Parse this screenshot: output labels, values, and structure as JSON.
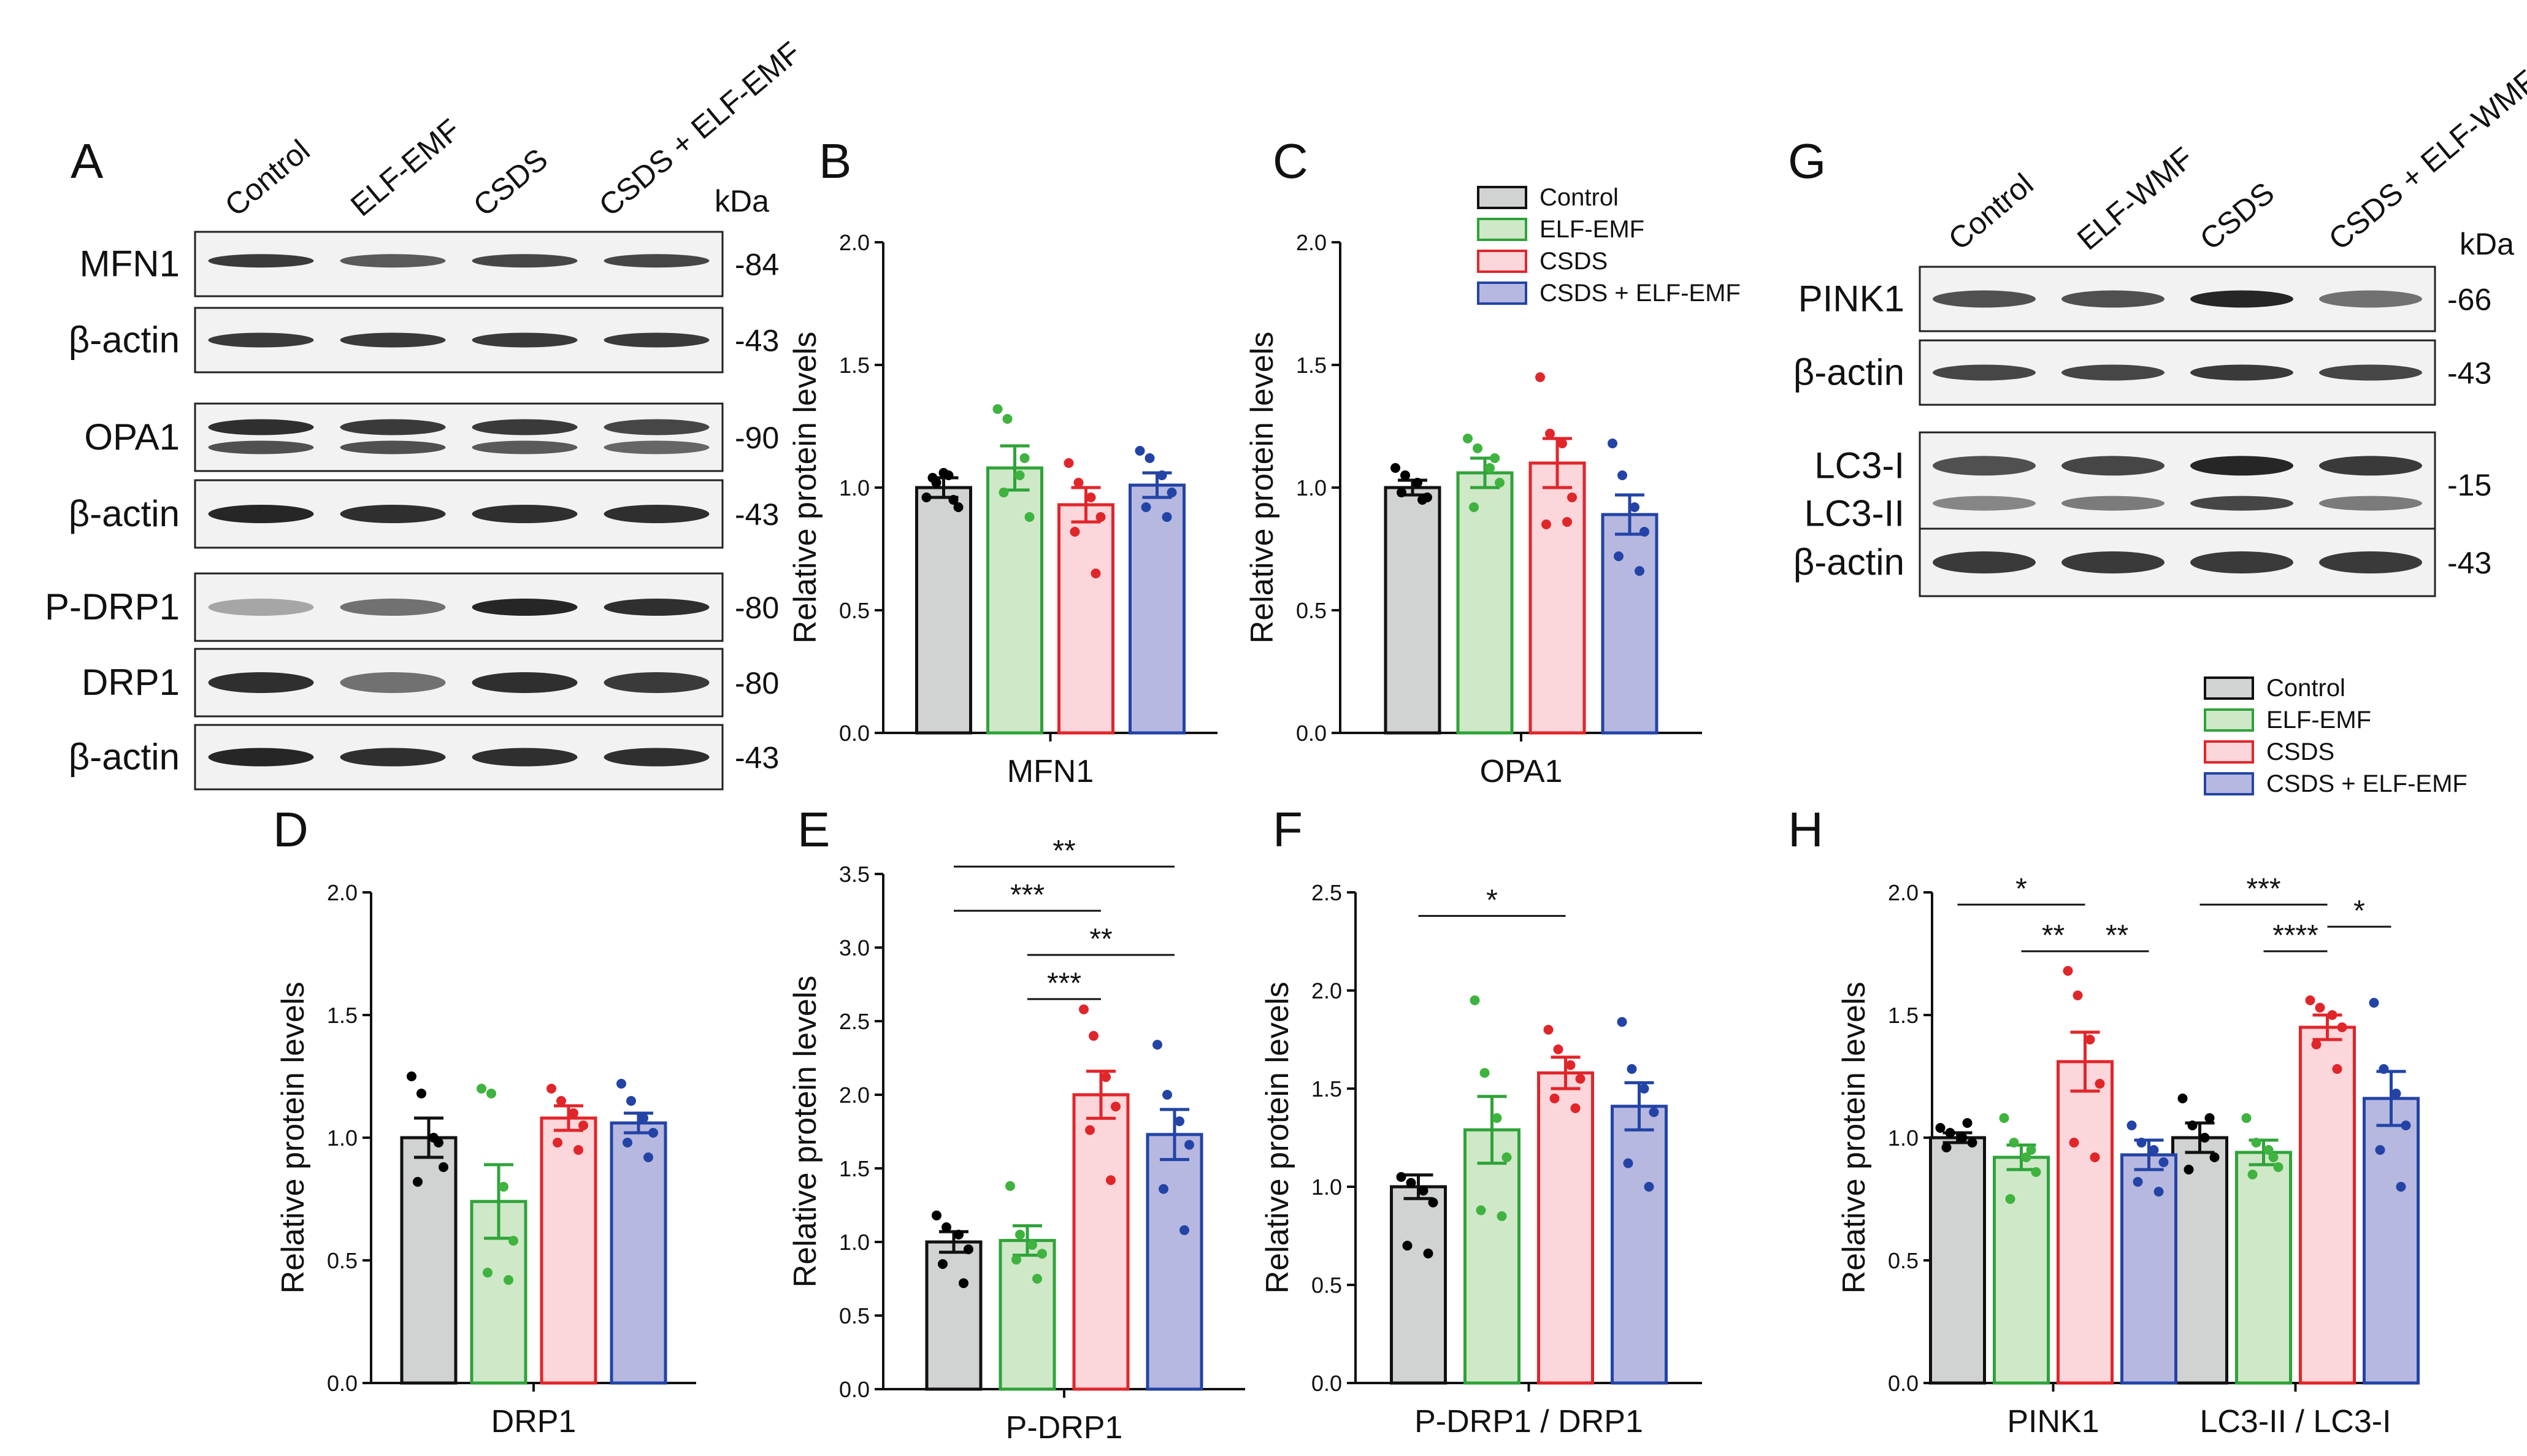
{
  "colors": {
    "control": {
      "fill": "#d0d3d2",
      "stroke": "#111111",
      "dot": "#000000"
    },
    "elf": {
      "fill": "#cfe8c8",
      "stroke": "#2fa33a",
      "dot": "#3fb33f"
    },
    "csds": {
      "fill": "#fbd6da",
      "stroke": "#e0262b",
      "dot": "#e0262b"
    },
    "csds_elf": {
      "fill": "#b7b8e0",
      "stroke": "#2344a6",
      "dot": "#2344a6"
    }
  },
  "legend_labels": [
    "Control",
    "ELF-EMF",
    "CSDS",
    "CSDS + ELF-EMF"
  ],
  "panel_letters": {
    "A": "A",
    "B": "B",
    "C": "C",
    "D": "D",
    "E": "E",
    "F": "F",
    "G": "G",
    "H": "H"
  },
  "blot_A": {
    "lanes": [
      "Control",
      "ELF-EMF",
      "CSDS",
      "CSDS + ELF-EMF"
    ],
    "unit": "kDa",
    "rows": [
      {
        "label": "MFN1",
        "kda": "-84"
      },
      {
        "label": "β-actin",
        "kda": "-43"
      },
      {
        "label": "OPA1",
        "kda": "-90"
      },
      {
        "label": "β-actin",
        "kda": "-43"
      },
      {
        "label": "P-DRP1",
        "kda": "-80"
      },
      {
        "label": "DRP1",
        "kda": "-80"
      },
      {
        "label": "β-actin",
        "kda": "-43"
      }
    ]
  },
  "blot_G": {
    "lanes": [
      "Control",
      "ELF-WMF",
      "CSDS",
      "CSDS + ELF-WMF"
    ],
    "unit": "kDa",
    "rows": [
      {
        "label": "PINK1",
        "kda": "-66"
      },
      {
        "label": "β-actin",
        "kda": "-43"
      },
      {
        "label": "LC3-I",
        "label2": "LC3-II",
        "kda": "-15"
      },
      {
        "label": "β-actin",
        "kda": "-43"
      }
    ]
  },
  "chart_data": [
    {
      "panel": "B",
      "type": "bar",
      "ylabel": "Relative protein levels",
      "xlabel": "",
      "categories": [
        "MFN1"
      ],
      "ylim": [
        0,
        2.0
      ],
      "yticks": [
        "0.0",
        "0.5",
        "1.0",
        "1.5",
        "2.0"
      ],
      "series": [
        {
          "name": "Control",
          "values": [
            1.0
          ],
          "sem": [
            0.04
          ],
          "points": [
            [
              0.96,
              1.02,
              1.05,
              0.92,
              1.04,
              0.95,
              1.06
            ]
          ]
        },
        {
          "name": "ELF-EMF",
          "values": [
            1.08
          ],
          "sem": [
            0.09
          ],
          "points": [
            [
              1.32,
              1.28,
              1.05,
              0.88,
              0.98,
              1.12
            ]
          ]
        },
        {
          "name": "CSDS",
          "values": [
            0.93
          ],
          "sem": [
            0.07
          ],
          "points": [
            [
              1.1,
              1.02,
              0.96,
              0.88,
              0.82,
              0.65
            ]
          ]
        },
        {
          "name": "CSDS + ELF-EMF",
          "values": [
            1.01
          ],
          "sem": [
            0.05
          ],
          "points": [
            [
              1.15,
              1.12,
              1.05,
              0.98,
              0.92,
              0.88
            ]
          ]
        }
      ],
      "significance": []
    },
    {
      "panel": "C",
      "type": "bar",
      "ylabel": "Relative protein levels",
      "xlabel": "",
      "categories": [
        "OPA1"
      ],
      "ylim": [
        0,
        2.0
      ],
      "yticks": [
        "0.0",
        "0.5",
        "1.0",
        "1.5",
        "2.0"
      ],
      "series": [
        {
          "name": "Control",
          "values": [
            1.0
          ],
          "sem": [
            0.03
          ],
          "points": [
            [
              1.08,
              1.05,
              1.02,
              0.96,
              0.98,
              0.95
            ]
          ]
        },
        {
          "name": "ELF-EMF",
          "values": [
            1.06
          ],
          "sem": [
            0.06
          ],
          "points": [
            [
              1.2,
              1.16,
              1.08,
              1.02,
              0.92,
              1.12
            ]
          ]
        },
        {
          "name": "CSDS",
          "values": [
            1.1
          ],
          "sem": [
            0.1
          ],
          "points": [
            [
              1.45,
              1.22,
              1.18,
              0.96,
              0.85,
              0.86
            ]
          ]
        },
        {
          "name": "CSDS + ELF-EMF",
          "values": [
            0.89
          ],
          "sem": [
            0.08
          ],
          "points": [
            [
              1.18,
              1.05,
              0.92,
              0.82,
              0.72,
              0.66
            ]
          ]
        }
      ],
      "significance": []
    },
    {
      "panel": "D",
      "type": "bar",
      "ylabel": "Relative protein levels",
      "xlabel": "",
      "categories": [
        "DRP1"
      ],
      "ylim": [
        0,
        2.0
      ],
      "yticks": [
        "0.0",
        "0.5",
        "1.0",
        "1.5",
        "2.0"
      ],
      "series": [
        {
          "name": "Control",
          "values": [
            1.0
          ],
          "sem": [
            0.08
          ],
          "points": [
            [
              1.25,
              1.18,
              1.0,
              0.88,
              0.82,
              0.98
            ]
          ]
        },
        {
          "name": "ELF-EMF",
          "values": [
            0.74
          ],
          "sem": [
            0.15
          ],
          "points": [
            [
              1.2,
              1.18,
              0.8,
              0.58,
              0.45,
              0.42
            ]
          ]
        },
        {
          "name": "CSDS",
          "values": [
            1.08
          ],
          "sem": [
            0.05
          ],
          "points": [
            [
              1.2,
              1.15,
              1.1,
              1.05,
              0.98,
              0.95
            ]
          ]
        },
        {
          "name": "CSDS + ELF-EMF",
          "values": [
            1.06
          ],
          "sem": [
            0.04
          ],
          "points": [
            [
              1.22,
              1.15,
              1.08,
              1.02,
              0.98,
              0.92
            ]
          ]
        }
      ],
      "significance": []
    },
    {
      "panel": "E",
      "type": "bar",
      "ylabel": "Relative protein levels",
      "xlabel": "",
      "categories": [
        "P-DRP1"
      ],
      "ylim": [
        0,
        3.5
      ],
      "yticks": [
        "0.0",
        "0.5",
        "1.0",
        "1.5",
        "2.0",
        "2.5",
        "3.0",
        "3.5"
      ],
      "series": [
        {
          "name": "Control",
          "values": [
            1.0
          ],
          "sem": [
            0.07
          ],
          "points": [
            [
              1.18,
              1.1,
              1.05,
              0.95,
              0.85,
              0.72
            ]
          ]
        },
        {
          "name": "ELF-EMF",
          "values": [
            1.01
          ],
          "sem": [
            0.1
          ],
          "points": [
            [
              1.38,
              1.05,
              0.98,
              0.92,
              0.88,
              0.75
            ]
          ]
        },
        {
          "name": "CSDS",
          "values": [
            2.0
          ],
          "sem": [
            0.16
          ],
          "points": [
            [
              2.58,
              2.4,
              2.12,
              1.92,
              1.76,
              1.42
            ]
          ]
        },
        {
          "name": "CSDS + ELF-EMF",
          "values": [
            1.73
          ],
          "sem": [
            0.17
          ],
          "points": [
            [
              2.34,
              2.0,
              1.82,
              1.66,
              1.36,
              1.08
            ]
          ]
        }
      ],
      "significance": [
        {
          "from": 0,
          "to": 3,
          "label": "**",
          "y": 3.55
        },
        {
          "from": 0,
          "to": 2,
          "label": "***",
          "y": 3.25
        },
        {
          "from": 1,
          "to": 3,
          "label": "**",
          "y": 2.95
        },
        {
          "from": 1,
          "to": 2,
          "label": "***",
          "y": 2.65
        }
      ]
    },
    {
      "panel": "F",
      "type": "bar",
      "ylabel": "Relative protein levels",
      "xlabel": "",
      "categories": [
        "P-DRP1 / DRP1"
      ],
      "ylim": [
        0,
        2.5
      ],
      "yticks": [
        "0.0",
        "0.5",
        "1.0",
        "1.5",
        "2.0",
        "2.5"
      ],
      "series": [
        {
          "name": "Control",
          "values": [
            1.0
          ],
          "sem": [
            0.06
          ],
          "points": [
            [
              1.05,
              1.02,
              0.98,
              0.92,
              0.7,
              0.66
            ]
          ]
        },
        {
          "name": "ELF-EMF",
          "values": [
            1.29
          ],
          "sem": [
            0.17
          ],
          "points": [
            [
              1.95,
              1.58,
              1.35,
              1.15,
              0.88,
              0.85
            ]
          ]
        },
        {
          "name": "CSDS",
          "values": [
            1.58
          ],
          "sem": [
            0.08
          ],
          "points": [
            [
              1.8,
              1.7,
              1.62,
              1.55,
              1.45,
              1.4
            ]
          ]
        },
        {
          "name": "CSDS + ELF-EMF",
          "values": [
            1.41
          ],
          "sem": [
            0.12
          ],
          "points": [
            [
              1.84,
              1.6,
              1.5,
              1.38,
              1.12,
              1.0
            ]
          ]
        }
      ],
      "significance": [
        {
          "from": 0,
          "to": 2,
          "label": "*",
          "y": 2.38
        }
      ]
    },
    {
      "panel": "H",
      "type": "bar",
      "ylabel": "Relative protein levels",
      "xlabel": "",
      "categories": [
        "PINK1",
        "LC3-II / LC3-I"
      ],
      "ylim": [
        0,
        2.0
      ],
      "yticks": [
        "0.0",
        "0.5",
        "1.0",
        "1.5",
        "2.0"
      ],
      "series": [
        {
          "name": "Control",
          "values": [
            1.0,
            1.0
          ],
          "sem": [
            0.02,
            0.06
          ],
          "points": [
            [
              1.04,
              1.02,
              1.0,
              0.98,
              0.96,
              1.06
            ],
            [
              1.16,
              1.05,
              1.0,
              0.92,
              0.87,
              1.08
            ]
          ]
        },
        {
          "name": "ELF-EMF",
          "values": [
            0.92,
            0.94
          ],
          "sem": [
            0.05,
            0.05
          ],
          "points": [
            [
              1.08,
              0.98,
              0.92,
              0.86,
              0.75,
              0.95
            ],
            [
              1.08,
              0.98,
              0.95,
              0.88,
              0.85,
              0.92
            ]
          ]
        },
        {
          "name": "CSDS",
          "values": [
            1.31,
            1.45
          ],
          "sem": [
            0.12,
            0.05
          ],
          "points": [
            [
              1.68,
              1.58,
              1.4,
              1.22,
              0.98,
              0.92
            ],
            [
              1.56,
              1.53,
              1.5,
              1.45,
              1.38,
              1.28
            ]
          ]
        },
        {
          "name": "CSDS + ELF-EMF",
          "values": [
            0.93,
            1.16
          ],
          "sem": [
            0.06,
            0.11
          ],
          "points": [
            [
              1.05,
              0.98,
              0.95,
              0.9,
              0.82,
              0.78
            ],
            [
              1.55,
              1.28,
              1.18,
              1.05,
              0.95,
              0.8
            ]
          ]
        }
      ],
      "significance": [
        {
          "category": 0,
          "from": 0,
          "to": 2,
          "label": "*",
          "y": 1.95
        },
        {
          "category": 0,
          "from": 1,
          "to": 2,
          "label": "**",
          "y": 1.76
        },
        {
          "category": 0,
          "from": 2,
          "to": 3,
          "label": "**",
          "y": 1.76
        },
        {
          "category": 1,
          "from": 0,
          "to": 2,
          "label": "***",
          "y": 1.95
        },
        {
          "category": 1,
          "from": 1,
          "to": 2,
          "label": "****",
          "y": 1.76
        },
        {
          "category": 1,
          "from": 2,
          "to": 3,
          "label": "*",
          "y": 1.86
        }
      ]
    }
  ]
}
